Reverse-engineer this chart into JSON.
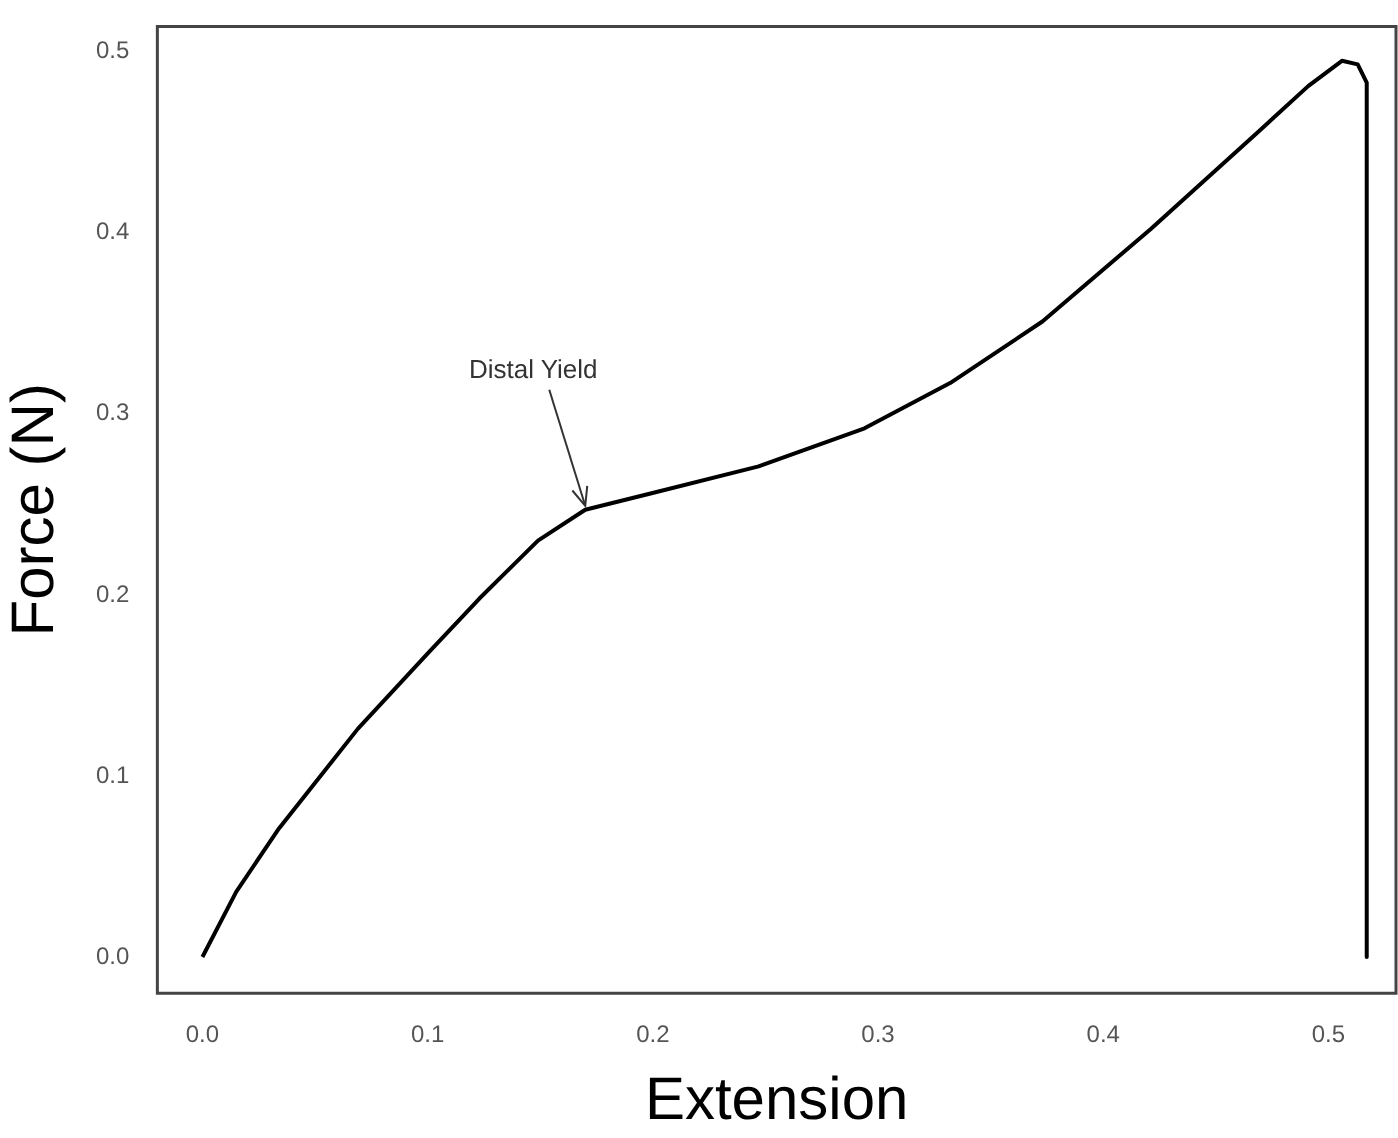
{
  "chart_data": {
    "type": "line",
    "xlabel": "Extension",
    "ylabel": "Force (N)",
    "x": [
      0,
      0.015,
      0.034,
      0.069,
      0.101,
      0.123,
      0.149,
      0.17,
      0.199,
      0.247,
      0.294,
      0.332,
      0.373,
      0.421,
      0.469,
      0.491,
      0.506,
      0.513,
      0.517,
      0.517
    ],
    "series": [
      {
        "color": "#000000",
        "values": [
          0,
          0.036,
          0.071,
          0.126,
          0.169,
          0.198,
          0.23,
          0.247,
          0.256,
          0.271,
          0.292,
          0.317,
          0.351,
          0.402,
          0.456,
          0.481,
          0.495,
          0.493,
          0.483,
          0
        ]
      }
    ],
    "xlim": [
      -0.02,
      0.53
    ],
    "xticks": [
      {
        "value": 0,
        "label": "0.0"
      },
      0.1,
      0.2,
      0.3,
      0.4,
      0.5
    ],
    "ylim": [
      -0.02,
      0.514
    ],
    "yticks": [
      {
        "value": 0,
        "label": "0.0"
      },
      0.1,
      0.2,
      0.3,
      0.4,
      0.5
    ],
    "annotations": [
      {
        "text": "Distal Yield",
        "x": 0.17,
        "y": 0.247
      }
    ],
    "grid": false,
    "legend": false,
    "marker": "none",
    "line_style": "solid"
  }
}
